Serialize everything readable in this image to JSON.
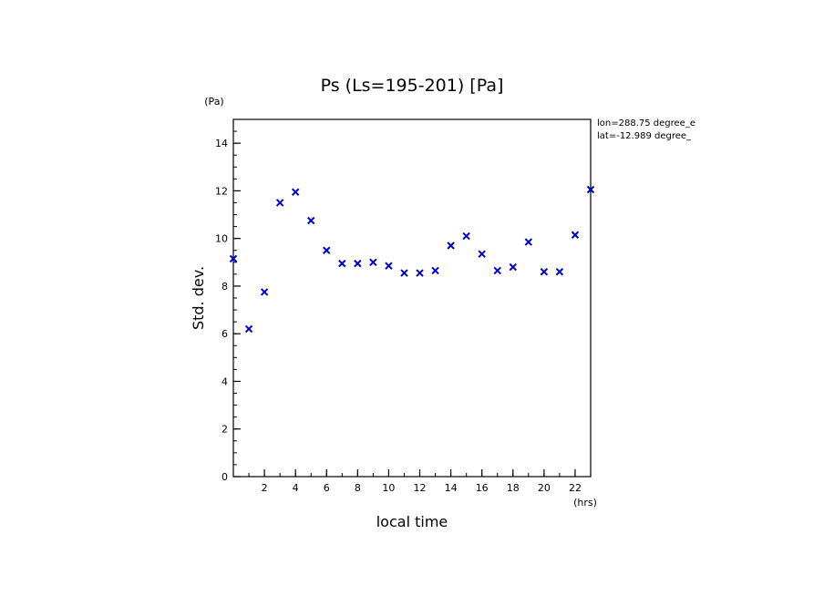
{
  "chart_data": {
    "type": "scatter",
    "title": "Ps (Ls=195-201) [Pa]",
    "xlabel": "local time",
    "ylabel": "Std. dev.",
    "xunit": "(hrs)",
    "yunit": "(Pa)",
    "xlim": [
      0,
      23
    ],
    "ylim": [
      0,
      15
    ],
    "xticks": [
      2,
      4,
      6,
      8,
      10,
      12,
      14,
      16,
      18,
      20,
      22
    ],
    "yticks": [
      0,
      2,
      4,
      6,
      8,
      10,
      12,
      14
    ],
    "xticks_minor_step": 1,
    "yticks_minor_step": 0.5,
    "grid": false,
    "annotations": [
      "lon=288.75 degree_e",
      "lat=-12.989 degree_"
    ],
    "marker_color": "#0000cc",
    "marker": "x",
    "x": [
      0,
      1,
      2,
      3,
      4,
      5,
      6,
      7,
      8,
      9,
      10,
      11,
      12,
      13,
      14,
      15,
      16,
      17,
      18,
      19,
      20,
      21,
      22,
      23
    ],
    "y": [
      9.15,
      6.2,
      7.75,
      11.5,
      11.95,
      10.75,
      9.5,
      8.95,
      8.95,
      9.0,
      8.85,
      8.55,
      8.55,
      8.65,
      9.7,
      10.1,
      9.35,
      8.65,
      8.8,
      9.85,
      8.6,
      8.6,
      10.15,
      12.05
    ]
  }
}
